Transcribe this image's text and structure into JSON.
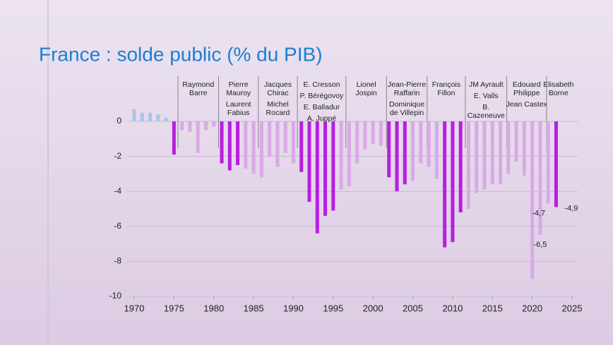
{
  "chart_data": {
    "type": "bar",
    "title": "France : solde public (% du PIB)",
    "x": [
      1970,
      1971,
      1972,
      1973,
      1974,
      1975,
      1976,
      1977,
      1978,
      1979,
      1980,
      1981,
      1982,
      1983,
      1984,
      1985,
      1986,
      1987,
      1988,
      1989,
      1990,
      1991,
      1992,
      1993,
      1994,
      1995,
      1996,
      1997,
      1998,
      1999,
      2000,
      2001,
      2002,
      2003,
      2004,
      2005,
      2006,
      2007,
      2008,
      2009,
      2010,
      2011,
      2012,
      2013,
      2014,
      2015,
      2016,
      2017,
      2018,
      2019,
      2020,
      2021,
      2022,
      2023
    ],
    "values": [
      0.7,
      0.5,
      0.5,
      0.4,
      0.2,
      -1.9,
      -0.5,
      -0.6,
      -1.8,
      -0.5,
      -0.3,
      -2.4,
      -2.8,
      -2.5,
      -2.7,
      -3.0,
      -3.2,
      -2.0,
      -2.6,
      -1.8,
      -2.4,
      -2.9,
      -4.6,
      -6.4,
      -5.4,
      -5.1,
      -3.9,
      -3.7,
      -2.4,
      -1.6,
      -1.3,
      -1.4,
      -3.2,
      -4.0,
      -3.6,
      -3.4,
      -2.4,
      -2.6,
      -3.3,
      -7.2,
      -6.9,
      -5.2,
      -5.0,
      -4.1,
      -3.9,
      -3.6,
      -3.6,
      -3.0,
      -2.3,
      -3.1,
      -9.0,
      -6.5,
      -4.7,
      -4.9
    ],
    "value_labels": [
      null,
      null,
      null,
      null,
      null,
      null,
      null,
      null,
      null,
      null,
      null,
      null,
      null,
      null,
      null,
      null,
      null,
      null,
      null,
      null,
      null,
      null,
      null,
      null,
      null,
      null,
      null,
      null,
      null,
      null,
      null,
      null,
      null,
      null,
      null,
      null,
      null,
      null,
      null,
      null,
      null,
      null,
      null,
      null,
      null,
      null,
      null,
      null,
      null,
      null,
      null,
      "-6,5",
      "-4,7",
      "-4,9"
    ],
    "colors": [
      "#a9c4ea",
      "#a9c4ea",
      "#a9c4ea",
      "#a9c4ea",
      "#a9c4ea",
      "#b81ee0",
      "#d9a9e6",
      "#d9a9e6",
      "#d9a9e6",
      "#d9a9e6",
      "#d9a9e6",
      "#b81ee0",
      "#b81ee0",
      "#b81ee0",
      "#d9a9e6",
      "#d9a9e6",
      "#d9a9e6",
      "#d9a9e6",
      "#d9a9e6",
      "#d9a9e6",
      "#d9a9e6",
      "#b81ee0",
      "#b81ee0",
      "#b81ee0",
      "#b81ee0",
      "#b81ee0",
      "#d9a9e6",
      "#d9a9e6",
      "#d9a9e6",
      "#d9a9e6",
      "#d9a9e6",
      "#d9a9e6",
      "#b81ee0",
      "#b81ee0",
      "#b81ee0",
      "#d9a9e6",
      "#d9a9e6",
      "#d9a9e6",
      "#d9a9e6",
      "#b81ee0",
      "#b81ee0",
      "#b81ee0",
      "#d9a9e6",
      "#d9a9e6",
      "#d9a9e6",
      "#d9a9e6",
      "#d9a9e6",
      "#d9a9e6",
      "#d9a9e6",
      "#d9a9e6",
      "#d9a9e6",
      "#d9a9e6",
      "#d9a9e6",
      "#b81ee0"
    ],
    "xlim": [
      1970,
      2025
    ],
    "xticks": [
      1970,
      1975,
      1980,
      1985,
      1990,
      1995,
      2000,
      2005,
      2010,
      2015,
      2020,
      2025
    ],
    "ylim": [
      -10,
      0.8
    ],
    "yticks": [
      0,
      -2,
      -4,
      -6,
      -8,
      -10
    ],
    "grid": true,
    "governments": [
      {
        "start": 1975.5,
        "end": 1980.6,
        "names": [
          [
            "Raymond",
            "Barre"
          ]
        ]
      },
      {
        "start": 1980.6,
        "end": 1985.6,
        "names": [
          [
            "Pierre",
            "Mauroy"
          ],
          [
            "Laurent",
            "Fabius"
          ]
        ]
      },
      {
        "start": 1985.6,
        "end": 1990.5,
        "names": [
          [
            "Jacques",
            "Chirac"
          ],
          [
            "Michel",
            "Rocard"
          ]
        ]
      },
      {
        "start": 1990.5,
        "end": 1996.6,
        "names": [
          [
            "E. Cresson"
          ],
          [
            "P. Bérégovoy"
          ],
          [
            "E. Balladur"
          ],
          [
            "A. Juppé"
          ]
        ]
      },
      {
        "start": 1996.6,
        "end": 2001.7,
        "names": [
          [
            "Lionel",
            "Jospin"
          ]
        ]
      },
      {
        "start": 2001.7,
        "end": 2006.8,
        "names": [
          [
            "Jean-Pierre",
            "Raffarin"
          ],
          [
            "Dominique",
            "de Villepin"
          ]
        ]
      },
      {
        "start": 2006.8,
        "end": 2011.6,
        "names": [
          [
            "François",
            "Fillon"
          ]
        ]
      },
      {
        "start": 2011.6,
        "end": 2016.8,
        "names": [
          [
            "JM Ayrault"
          ],
          [
            "E. Valls"
          ],
          [
            "B.",
            "Cazeneuve"
          ]
        ]
      },
      {
        "start": 2016.8,
        "end": 2021.8,
        "names": [
          [
            "Edouard",
            "Philippe"
          ],
          [
            "Jean Castex"
          ]
        ]
      },
      {
        "start": 2021.8,
        "end": 2024.8,
        "names": [
          [
            "Elisabeth",
            "Borne"
          ]
        ]
      }
    ]
  }
}
